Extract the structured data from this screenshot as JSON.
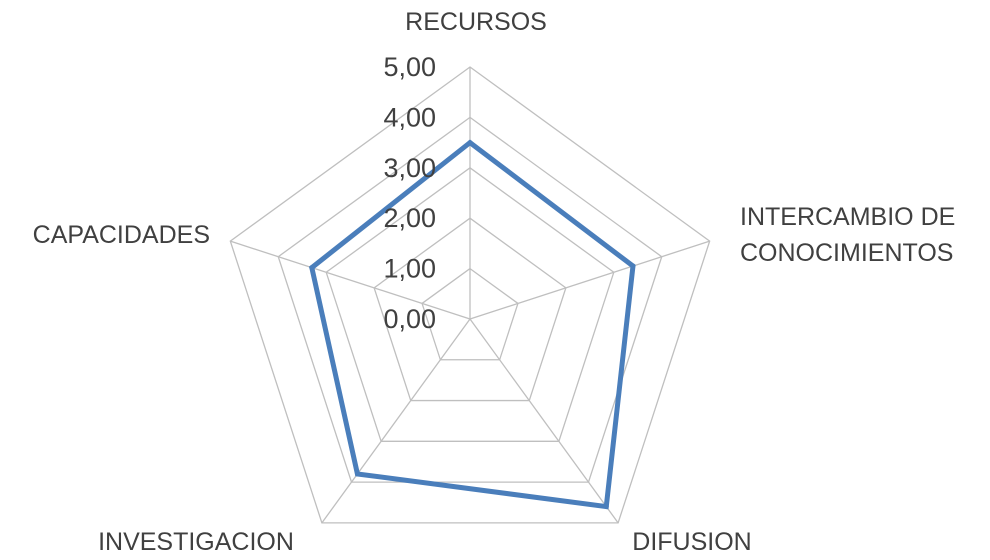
{
  "chart_data": {
    "type": "radar",
    "title": "",
    "categories": [
      "RECURSOS",
      "INTERCAMBIO DE CONOCIMIENTOS",
      "DIFUSION",
      "INVESTIGACION",
      "CAPACIDADES"
    ],
    "category_labels": [
      [
        "RECURSOS"
      ],
      [
        "INTERCAMBIO DE",
        "CONOCIMIENTOS"
      ],
      [
        "DIFUSION"
      ],
      [
        "INVESTIGACION"
      ],
      [
        "CAPACIDADES"
      ]
    ],
    "series": [
      {
        "values": [
          3.5,
          3.4,
          4.6,
          3.8,
          3.3
        ],
        "color": "#4a7ebb"
      }
    ],
    "rlim": [
      0,
      5
    ],
    "ticks": [
      "0,00",
      "1,00",
      "2,00",
      "3,00",
      "4,00",
      "5,00"
    ],
    "grid": true,
    "legend": "none",
    "grid_color": "#bfbfbf",
    "text_color": "#404040"
  }
}
